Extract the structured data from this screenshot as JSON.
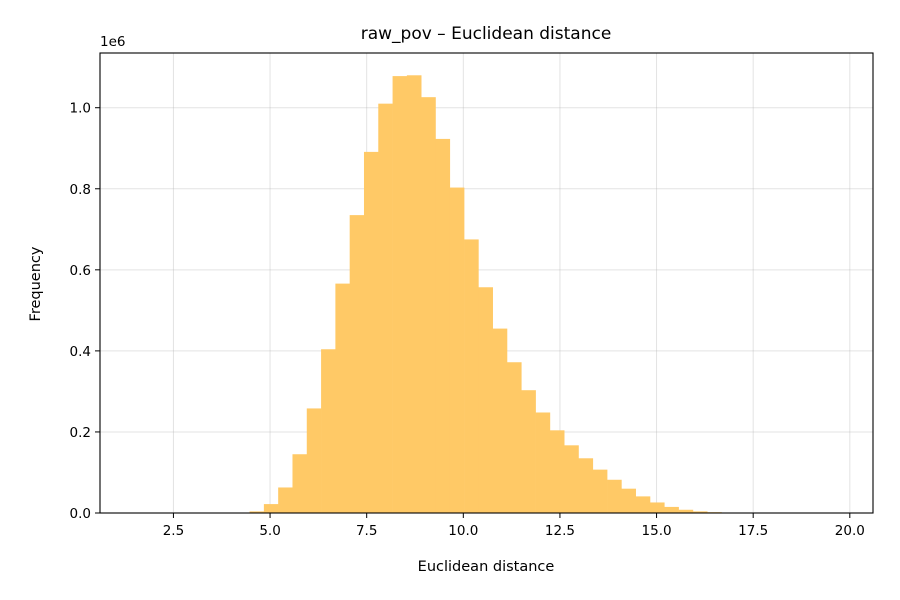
{
  "chart_data": {
    "type": "bar",
    "title": "raw_pov – Euclidean distance",
    "xlabel": "Euclidean distance",
    "ylabel": "Frequency",
    "y_offset_label": "1e6",
    "y_scale": 1000000,
    "xlim": [
      0.6,
      20.6
    ],
    "ylim": [
      0,
      1.135
    ],
    "xticks": [
      2.5,
      5.0,
      7.5,
      10.0,
      12.5,
      15.0,
      17.5,
      20.0
    ],
    "xtick_labels": [
      "2.5",
      "5.0",
      "7.5",
      "10.0",
      "12.5",
      "15.0",
      "17.5",
      "20.0"
    ],
    "yticks": [
      0.0,
      0.2,
      0.4,
      0.6,
      0.8,
      1.0
    ],
    "ytick_labels": [
      "0.0",
      "0.2",
      "0.4",
      "0.6",
      "0.8",
      "1.0"
    ],
    "grid": true,
    "bar_color": "#FFC966",
    "bin_width": 0.37,
    "bins_start": [
      4.47,
      4.84,
      5.21,
      5.58,
      5.95,
      6.32,
      6.69,
      7.06,
      7.43,
      7.8,
      8.17,
      8.54,
      8.91,
      9.28,
      9.65,
      10.02,
      10.39,
      10.76,
      11.13,
      11.5,
      11.87,
      12.24,
      12.61,
      12.98,
      13.35,
      13.72,
      14.09,
      14.46,
      14.83,
      15.2,
      15.57,
      15.94,
      16.31
    ],
    "values": [
      0.004,
      0.022,
      0.063,
      0.145,
      0.258,
      0.404,
      0.566,
      0.735,
      0.891,
      1.01,
      1.078,
      1.08,
      1.026,
      0.923,
      0.803,
      0.675,
      0.557,
      0.455,
      0.372,
      0.303,
      0.248,
      0.204,
      0.167,
      0.135,
      0.107,
      0.082,
      0.06,
      0.041,
      0.026,
      0.015,
      0.008,
      0.004,
      0.002
    ]
  }
}
